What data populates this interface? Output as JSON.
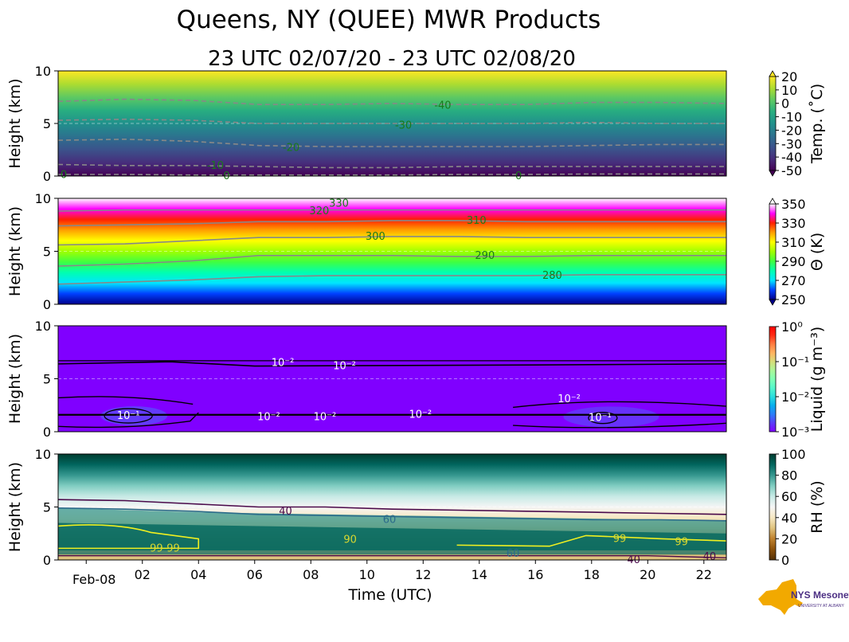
{
  "title": "Queens, NY (QUEE) MWR Products",
  "subtitle": "23 UTC 02/07/20 - 23 UTC 02/08/20",
  "logo_text": {
    "main": "NYS Mesonet",
    "sub": "UNIVERSITY AT ALBANY"
  },
  "chart_data": [
    {
      "type": "heatmap",
      "variable": "temperature",
      "xlabel": "Time (UTC)",
      "ylabel": "Height (km)",
      "ylim": [
        0,
        10
      ],
      "yticks": [
        "0",
        "5",
        "10"
      ],
      "x_range_hours": [
        23,
        46.8
      ],
      "colorbar_label": "Temp. (˚C)",
      "colorbar_ticks": [
        "20",
        "10",
        "0",
        "-10",
        "-20",
        "-30",
        "-40",
        "-50"
      ],
      "clim": [
        -50,
        20
      ],
      "colormap": [
        "#440154",
        "#472d7b",
        "#3b528b",
        "#2c728e",
        "#21918c",
        "#28ae80",
        "#5ec962",
        "#addc30",
        "#fde725"
      ],
      "contour_color": "#888888",
      "contours": [
        {
          "level": "-40",
          "y_km": [
            7.1,
            7.3,
            7.2,
            6.8,
            6.8,
            6.9,
            6.8,
            6.8,
            7.0,
            7.0,
            6.9
          ]
        },
        {
          "level": "-30",
          "y_km": [
            5.3,
            5.4,
            5.3,
            5.0,
            5.0,
            5.0,
            5.0,
            5.0,
            5.1,
            5.0,
            5.0
          ]
        },
        {
          "level": "-20",
          "y_km": [
            3.4,
            3.5,
            3.3,
            2.9,
            2.8,
            2.8,
            2.8,
            2.8,
            2.9,
            3.0,
            3.0
          ]
        },
        {
          "level": "-10",
          "y_km": [
            1.1,
            1.0,
            1.0,
            0.9,
            0.8,
            0.8,
            0.9,
            0.9,
            0.9,
            0.9,
            0.9
          ]
        },
        {
          "level": "0",
          "y_km": [
            0.15,
            0.15,
            0.1,
            0.1,
            0.1,
            0.1,
            0.15,
            0.15,
            0.2,
            0.2,
            0.2
          ]
        }
      ],
      "contour_labels": [
        {
          "text": "-40",
          "time_h": 36.7,
          "y_km": 6.7
        },
        {
          "text": "-30",
          "time_h": 35.3,
          "y_km": 4.8
        },
        {
          "text": "-20",
          "time_h": 31.3,
          "y_km": 2.7
        },
        {
          "text": "-10",
          "time_h": 28.6,
          "y_km": 1.0
        },
        {
          "text": "0",
          "time_h": 23.2,
          "y_km": 0.1
        },
        {
          "text": "0",
          "time_h": 29.0,
          "y_km": 0.0
        },
        {
          "text": "0",
          "time_h": 39.4,
          "y_km": 0.0
        }
      ]
    },
    {
      "type": "heatmap",
      "variable": "potential_temperature",
      "xlabel": "Time (UTC)",
      "ylabel": "Height (km)",
      "ylim": [
        0,
        10
      ],
      "yticks": [
        "0",
        "5",
        "10"
      ],
      "colorbar_label": "Θ (K)",
      "colorbar_ticks": [
        "350",
        "330",
        "310",
        "290",
        "270",
        "250"
      ],
      "clim": [
        250,
        360
      ],
      "colormap": [
        "#00008b",
        "#0040ff",
        "#00e5ff",
        "#00ffb0",
        "#40ff40",
        "#a0ff00",
        "#ffff00",
        "#ffa000",
        "#ff2000",
        "#ff00ff",
        "#ffffff"
      ],
      "contour_color": "#888888",
      "contours": [
        {
          "level": "320",
          "y_km": [
            8.8,
            8.9,
            8.9,
            8.9,
            8.9,
            8.9,
            8.9,
            8.9,
            8.9,
            8.9,
            8.9
          ]
        },
        {
          "level": "310",
          "y_km": [
            7.4,
            7.5,
            7.6,
            7.8,
            7.8,
            7.9,
            7.9,
            7.8,
            7.8,
            7.8,
            7.8
          ]
        },
        {
          "level": "300",
          "y_km": [
            5.6,
            5.7,
            6.0,
            6.3,
            6.3,
            6.4,
            6.4,
            6.3,
            6.3,
            6.3,
            6.3
          ]
        },
        {
          "level": "290",
          "y_km": [
            3.6,
            3.8,
            4.1,
            4.6,
            4.6,
            4.6,
            4.5,
            4.5,
            4.6,
            4.6,
            4.6
          ]
        },
        {
          "level": "280",
          "y_km": [
            1.9,
            2.1,
            2.3,
            2.6,
            2.7,
            2.7,
            2.7,
            2.7,
            2.8,
            2.8,
            2.8
          ]
        }
      ],
      "contour_labels": [
        {
          "text": "330",
          "time_h": 33.0,
          "y_km": 9.5
        },
        {
          "text": "320",
          "time_h": 32.3,
          "y_km": 8.8
        },
        {
          "text": "310",
          "time_h": 37.9,
          "y_km": 7.9
        },
        {
          "text": "300",
          "time_h": 34.3,
          "y_km": 6.4
        },
        {
          "text": "290",
          "time_h": 38.2,
          "y_km": 4.6
        },
        {
          "text": "280",
          "time_h": 40.6,
          "y_km": 2.7
        }
      ]
    },
    {
      "type": "heatmap",
      "variable": "liquid_water",
      "xlabel": "Time (UTC)",
      "ylabel": "Height (km)",
      "ylim": [
        0,
        10
      ],
      "yticks": [
        "0",
        "5",
        "10"
      ],
      "colorbar_label": "Liquid (g m⁻³)",
      "colorbar_ticks": [
        "10⁰",
        "10⁻¹",
        "10⁻²",
        "10⁻³"
      ],
      "clim": [
        0.001,
        1
      ],
      "log_scale": true,
      "colormap": [
        "#8000ff",
        "#5a3cf7",
        "#2c7ef8",
        "#06aeed",
        "#2adddd",
        "#54f6cb",
        "#80ffb4",
        "#acf699",
        "#d6dd79",
        "#ffb360",
        "#ff7c41",
        "#ff2c14",
        "#ff0000"
      ],
      "background_color": "#8000ff",
      "contour_color": "#000000",
      "contour_labels": [
        {
          "text": "10⁻²",
          "time_h": 31.0,
          "y_km": 6.5
        },
        {
          "text": "10⁻²",
          "time_h": 33.2,
          "y_km": 6.2
        },
        {
          "text": "10⁻¹",
          "time_h": 25.5,
          "y_km": 1.5
        },
        {
          "text": "10⁻²",
          "time_h": 30.5,
          "y_km": 1.4
        },
        {
          "text": "10⁻²",
          "time_h": 32.5,
          "y_km": 1.4
        },
        {
          "text": "10⁻²",
          "time_h": 35.9,
          "y_km": 1.6
        },
        {
          "text": "10⁻²",
          "time_h": 41.2,
          "y_km": 3.1
        },
        {
          "text": "10⁻¹",
          "time_h": 42.3,
          "y_km": 1.3
        }
      ]
    },
    {
      "type": "heatmap",
      "variable": "relative_humidity",
      "xlabel": "Time (UTC)",
      "ylabel": "Height (km)",
      "ylim": [
        0,
        10
      ],
      "yticks": [
        "0",
        "5",
        "10"
      ],
      "xticks": [
        "Feb-08",
        "02",
        "04",
        "06",
        "08",
        "10",
        "12",
        "14",
        "16",
        "18",
        "20",
        "22"
      ],
      "xtick_hours": [
        24,
        26,
        28,
        30,
        32,
        34,
        36,
        38,
        40,
        42,
        44,
        46
      ],
      "colorbar_label": "RH (%)",
      "colorbar_ticks": [
        "100",
        "80",
        "60",
        "40",
        "20",
        "0"
      ],
      "clim": [
        0,
        105
      ],
      "colormap": [
        "#543005",
        "#8c510a",
        "#bf812d",
        "#dfc27d",
        "#f6e8c3",
        "#f5f5f5",
        "#c7eae5",
        "#80cdc1",
        "#35978f",
        "#01665e",
        "#003c30"
      ],
      "contours": [
        {
          "level": "40",
          "color": "#4b0a4b",
          "y_km": [
            5.7,
            5.6,
            5.3,
            5.0,
            5.0,
            4.8,
            4.7,
            4.6,
            4.5,
            4.4,
            4.3
          ]
        },
        {
          "level": "60",
          "color": "#2b6b8a",
          "y_km": [
            4.9,
            4.8,
            4.6,
            4.3,
            4.2,
            4.1,
            4.0,
            3.9,
            3.8,
            3.8,
            3.7
          ]
        }
      ],
      "contour_labels": [
        {
          "text": "40",
          "time_h": 31.1,
          "y_km": 4.6
        },
        {
          "text": "60",
          "time_h": 34.8,
          "y_km": 3.8
        },
        {
          "text": "99",
          "time_h": 26.5,
          "y_km": 1.1
        },
        {
          "text": "99",
          "time_h": 27.1,
          "y_km": 1.1
        },
        {
          "text": "99",
          "time_h": 43.0,
          "y_km": 2.0
        },
        {
          "text": "99",
          "time_h": 45.2,
          "y_km": 1.7
        },
        {
          "text": "90",
          "time_h": 33.4,
          "y_km": 1.9
        },
        {
          "text": "60",
          "time_h": 39.2,
          "y_km": 0.6
        },
        {
          "text": "40",
          "time_h": 43.5,
          "y_km": 0.0
        },
        {
          "text": "40",
          "time_h": 46.2,
          "y_km": 0.3
        }
      ]
    }
  ]
}
